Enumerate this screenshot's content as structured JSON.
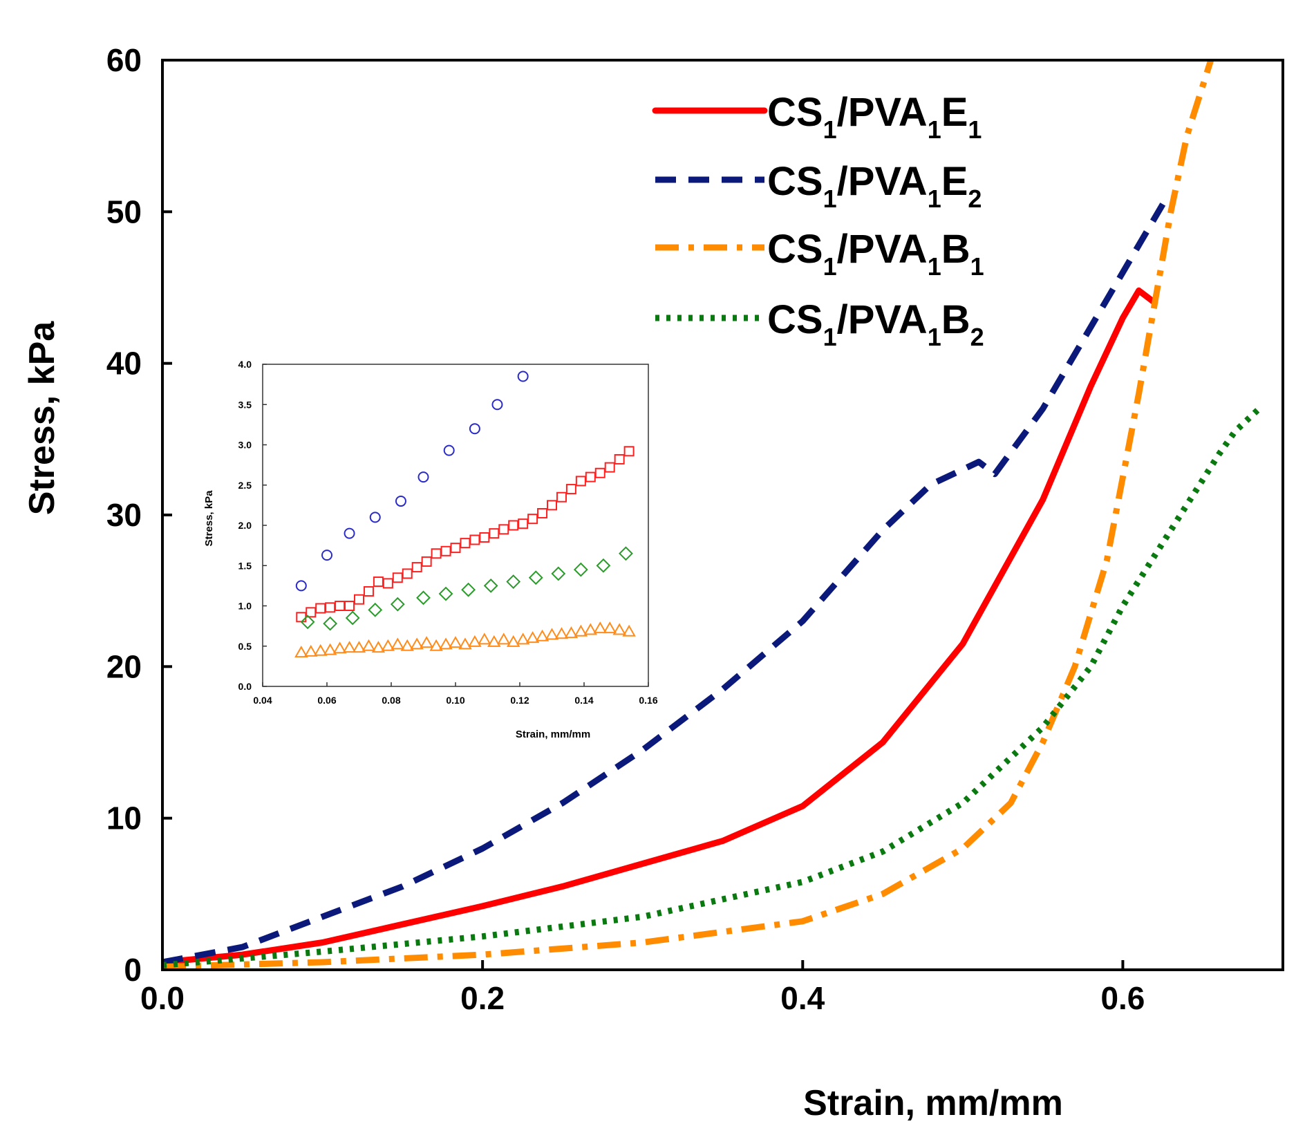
{
  "chart_data": [
    {
      "type": "line",
      "title": "",
      "xlabel": "Strain, mm/mm",
      "ylabel": "Stress, kPa",
      "xlim": [
        0,
        0.7
      ],
      "ylim": [
        0,
        60
      ],
      "xticks": [
        {
          "value": 0.0,
          "label": "0.0"
        },
        {
          "value": 0.2,
          "label": "0.2"
        },
        {
          "value": 0.4,
          "label": "0.4"
        },
        {
          "value": 0.6,
          "label": "0.6"
        }
      ],
      "yticks": [
        {
          "value": 0,
          "label": "0"
        },
        {
          "value": 10,
          "label": "10"
        },
        {
          "value": 20,
          "label": "20"
        },
        {
          "value": 30,
          "label": "30"
        },
        {
          "value": 40,
          "label": "40"
        },
        {
          "value": 50,
          "label": "50"
        },
        {
          "value": 60,
          "label": "60"
        }
      ],
      "legend_position": "top-right",
      "series": [
        {
          "name": "CS1/PVA1E1",
          "name_parts": [
            "CS",
            "1",
            "/PVA",
            "1",
            "E",
            "1"
          ],
          "color": "#ff0000",
          "style": "solid",
          "x": [
            0,
            0.05,
            0.1,
            0.15,
            0.2,
            0.25,
            0.3,
            0.35,
            0.4,
            0.45,
            0.5,
            0.55,
            0.58,
            0.6,
            0.61,
            0.62
          ],
          "y": [
            0.5,
            1.0,
            1.8,
            3.0,
            4.2,
            5.5,
            7.0,
            8.5,
            10.8,
            15.0,
            21.5,
            31.0,
            38.5,
            43.0,
            44.8,
            44.0
          ]
        },
        {
          "name": "CS1/PVA1E2",
          "name_parts": [
            "CS",
            "1",
            "/PVA",
            "1",
            "E",
            "2"
          ],
          "color": "#0b1a7a",
          "style": "dashed",
          "x": [
            0,
            0.05,
            0.1,
            0.15,
            0.2,
            0.25,
            0.3,
            0.35,
            0.4,
            0.45,
            0.48,
            0.5,
            0.51,
            0.52,
            0.55,
            0.6,
            0.625
          ],
          "y": [
            0.5,
            1.5,
            3.5,
            5.5,
            8.0,
            11.0,
            14.5,
            18.5,
            23.0,
            29.0,
            32.0,
            33.0,
            33.5,
            32.7,
            37.0,
            46.0,
            50.5
          ]
        },
        {
          "name": "CS1/PVA1B1",
          "name_parts": [
            "CS",
            "1",
            "/PVA",
            "1",
            "B",
            "1"
          ],
          "color": "#ff8c00",
          "style": "dashdot",
          "x": [
            0,
            0.1,
            0.2,
            0.3,
            0.4,
            0.45,
            0.5,
            0.53,
            0.55,
            0.57,
            0.59,
            0.61,
            0.63,
            0.64,
            0.655
          ],
          "y": [
            0.2,
            0.5,
            1.0,
            1.8,
            3.2,
            5.0,
            8.0,
            11.0,
            15.0,
            20.0,
            27.0,
            38.0,
            50.0,
            55.0,
            60.0
          ]
        },
        {
          "name": "CS1/PVA1B2",
          "name_parts": [
            "CS",
            "1",
            "/PVA",
            "1",
            "B",
            "2"
          ],
          "color": "#0a7a10",
          "style": "dotted",
          "x": [
            0,
            0.1,
            0.2,
            0.3,
            0.4,
            0.45,
            0.5,
            0.55,
            0.58,
            0.6,
            0.63,
            0.66,
            0.67,
            0.685
          ],
          "y": [
            0.3,
            1.2,
            2.2,
            3.5,
            5.8,
            7.8,
            11.0,
            16.0,
            20.0,
            24.0,
            29.0,
            34.0,
            35.5,
            37.0
          ]
        }
      ]
    },
    {
      "type": "scatter",
      "title": "",
      "xlabel": "Strain, mm/mm",
      "ylabel": "Stress, kPa",
      "xlim": [
        0.04,
        0.16
      ],
      "ylim": [
        0,
        4
      ],
      "xticks": [
        {
          "value": 0.04,
          "label": "0.04"
        },
        {
          "value": 0.06,
          "label": "0.06"
        },
        {
          "value": 0.08,
          "label": "0.08"
        },
        {
          "value": 0.1,
          "label": "0.10"
        },
        {
          "value": 0.12,
          "label": "0.12"
        },
        {
          "value": 0.14,
          "label": "0.14"
        },
        {
          "value": 0.16,
          "label": "0.16"
        }
      ],
      "yticks": [
        {
          "value": 0.0,
          "label": "0.0"
        },
        {
          "value": 0.5,
          "label": "0.5"
        },
        {
          "value": 1.0,
          "label": "1.0"
        },
        {
          "value": 1.5,
          "label": "1.5"
        },
        {
          "value": 2.0,
          "label": "2.0"
        },
        {
          "value": 2.5,
          "label": "2.5"
        },
        {
          "value": 3.0,
          "label": "3.0"
        },
        {
          "value": 3.5,
          "label": "3.5"
        },
        {
          "value": 4.0,
          "label": "4.0"
        }
      ],
      "series": [
        {
          "name": "CS1/PVA1E2",
          "marker": "circle",
          "color": "#2a2ac8",
          "x": [
            0.052,
            0.06,
            0.067,
            0.075,
            0.083,
            0.09,
            0.098,
            0.106,
            0.113,
            0.121
          ],
          "y": [
            1.25,
            1.63,
            1.9,
            2.1,
            2.3,
            2.6,
            2.93,
            3.2,
            3.5,
            3.85
          ]
        },
        {
          "name": "CS1/PVA1E1",
          "marker": "square",
          "color": "#ff2020",
          "x": [
            0.052,
            0.055,
            0.058,
            0.061,
            0.064,
            0.067,
            0.07,
            0.073,
            0.076,
            0.079,
            0.082,
            0.085,
            0.088,
            0.091,
            0.094,
            0.097,
            0.1,
            0.103,
            0.106,
            0.109,
            0.112,
            0.115,
            0.118,
            0.121,
            0.124,
            0.127,
            0.13,
            0.133,
            0.136,
            0.139,
            0.142,
            0.145,
            0.148,
            0.151,
            0.154
          ],
          "y": [
            0.86,
            0.92,
            0.97,
            0.98,
            1.0,
            1.0,
            1.08,
            1.18,
            1.3,
            1.28,
            1.35,
            1.4,
            1.48,
            1.55,
            1.65,
            1.68,
            1.72,
            1.78,
            1.82,
            1.85,
            1.9,
            1.95,
            2.0,
            2.02,
            2.08,
            2.15,
            2.25,
            2.35,
            2.45,
            2.55,
            2.6,
            2.65,
            2.72,
            2.82,
            2.92
          ]
        },
        {
          "name": "CS1/PVA1B2",
          "marker": "diamond",
          "color": "#2a9a2a",
          "x": [
            0.054,
            0.061,
            0.068,
            0.075,
            0.082,
            0.09,
            0.097,
            0.104,
            0.111,
            0.118,
            0.125,
            0.132,
            0.139,
            0.146,
            0.153
          ],
          "y": [
            0.8,
            0.78,
            0.85,
            0.95,
            1.02,
            1.1,
            1.15,
            1.2,
            1.25,
            1.3,
            1.35,
            1.4,
            1.45,
            1.5,
            1.65
          ]
        },
        {
          "name": "CS1/PVA1B1",
          "marker": "triangle",
          "color": "#ff8c1a",
          "x": [
            0.052,
            0.055,
            0.058,
            0.061,
            0.064,
            0.067,
            0.07,
            0.073,
            0.076,
            0.079,
            0.082,
            0.085,
            0.088,
            0.091,
            0.094,
            0.097,
            0.1,
            0.103,
            0.106,
            0.109,
            0.112,
            0.115,
            0.118,
            0.121,
            0.124,
            0.127,
            0.13,
            0.133,
            0.136,
            0.139,
            0.142,
            0.145,
            0.148,
            0.151,
            0.154
          ],
          "y": [
            0.42,
            0.43,
            0.44,
            0.45,
            0.47,
            0.48,
            0.48,
            0.5,
            0.48,
            0.5,
            0.52,
            0.5,
            0.52,
            0.54,
            0.5,
            0.52,
            0.54,
            0.52,
            0.55,
            0.58,
            0.55,
            0.58,
            0.55,
            0.58,
            0.6,
            0.62,
            0.64,
            0.65,
            0.66,
            0.68,
            0.7,
            0.72,
            0.72,
            0.7,
            0.68
          ]
        }
      ]
    }
  ]
}
